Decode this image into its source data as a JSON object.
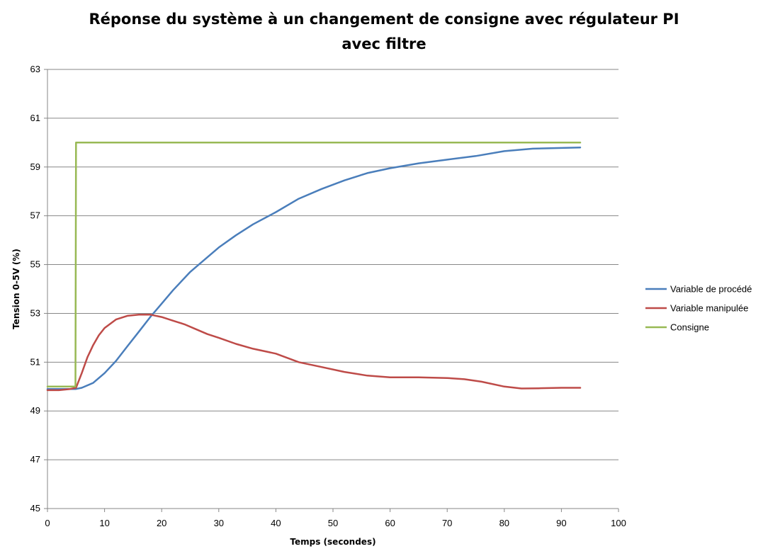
{
  "chart_data": {
    "type": "line",
    "title_line1": "Réponse du système à un changement de consigne avec régulateur PI",
    "title_line2": "avec filtre",
    "xlabel": "Temps (secondes)",
    "ylabel": "Tension 0-5V (%)",
    "xlim": [
      0,
      100
    ],
    "ylim": [
      45,
      63
    ],
    "xticks": [
      0,
      10,
      20,
      30,
      40,
      50,
      60,
      70,
      80,
      90,
      100
    ],
    "yticks": [
      45,
      47,
      49,
      51,
      53,
      55,
      57,
      59,
      61,
      63
    ],
    "grid": "horizontal",
    "legend_position": "right",
    "series": [
      {
        "name": "Variable de procédé",
        "color": "#4a7ebb",
        "x": [
          0,
          2,
          4,
          5,
          6,
          8,
          10,
          12,
          14,
          16,
          18,
          20,
          22,
          25,
          28,
          30,
          33,
          36,
          40,
          44,
          48,
          52,
          56,
          60,
          65,
          70,
          75,
          80,
          85,
          90,
          93.3
        ],
        "y": [
          49.9,
          49.9,
          49.9,
          49.9,
          49.95,
          50.15,
          50.55,
          51.05,
          51.65,
          52.25,
          52.85,
          53.4,
          53.95,
          54.7,
          55.3,
          55.7,
          56.2,
          56.65,
          57.15,
          57.7,
          58.1,
          58.45,
          58.75,
          58.95,
          59.15,
          59.3,
          59.45,
          59.65,
          59.75,
          59.78,
          59.8
        ]
      },
      {
        "name": "Variable manipulée",
        "color": "#be4b48",
        "x": [
          0,
          2,
          4,
          5,
          6,
          7,
          8,
          9,
          10,
          12,
          14,
          16,
          18,
          20,
          22,
          24,
          26,
          28,
          30,
          33,
          36,
          40,
          44,
          48,
          52,
          56,
          60,
          65,
          70,
          73,
          76,
          80,
          83,
          86,
          90,
          93.3
        ],
        "y": [
          49.85,
          49.85,
          49.9,
          49.95,
          50.55,
          51.2,
          51.7,
          52.1,
          52.4,
          52.75,
          52.9,
          52.95,
          52.95,
          52.85,
          52.7,
          52.55,
          52.35,
          52.15,
          52.0,
          51.75,
          51.55,
          51.35,
          51.0,
          50.8,
          50.6,
          50.45,
          50.38,
          50.38,
          50.35,
          50.3,
          50.2,
          50.0,
          49.92,
          49.93,
          49.95,
          49.95
        ]
      },
      {
        "name": "Consigne",
        "color": "#98b954",
        "x": [
          0,
          4.9,
          5,
          93.3
        ],
        "y": [
          50,
          50,
          60,
          60
        ]
      }
    ]
  }
}
